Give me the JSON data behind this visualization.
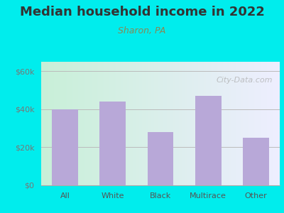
{
  "title": "Median household income in 2022",
  "subtitle": "Sharon, PA",
  "categories": [
    "All",
    "White",
    "Black",
    "Multirace",
    "Other"
  ],
  "values": [
    40000,
    44000,
    28000,
    47000,
    25000
  ],
  "bar_color": "#b8a8d8",
  "title_color": "#333333",
  "subtitle_color": "#888855",
  "ylabel_color": "#777777",
  "xlabel_color": "#555555",
  "bg_outer": "#00eded",
  "bg_inner_start": "#c8f0d8",
  "bg_inner_end": "#eeeeff",
  "ylim": [
    0,
    65000
  ],
  "yticks": [
    0,
    20000,
    40000,
    60000
  ],
  "ytick_labels": [
    "$0",
    "$20k",
    "$40k",
    "$60k"
  ],
  "watermark": "City-Data.com",
  "title_fontsize": 13,
  "subtitle_fontsize": 9,
  "tick_fontsize": 8,
  "xtick_fontsize": 8
}
